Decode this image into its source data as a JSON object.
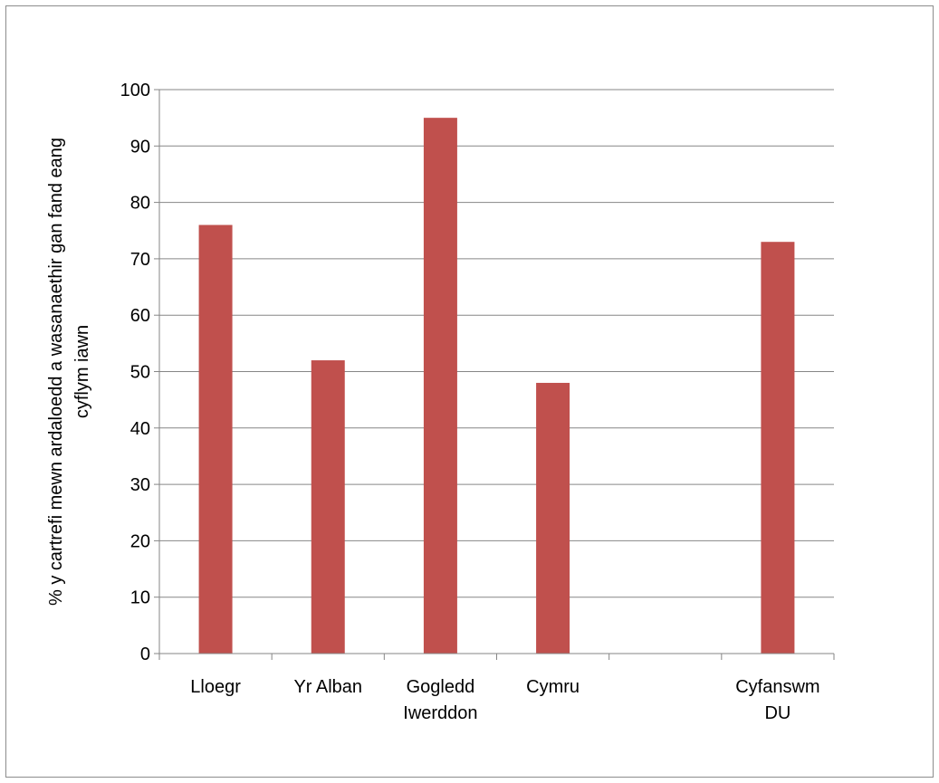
{
  "chart_data": {
    "type": "bar",
    "title": "",
    "xlabel": "",
    "ylabel_lines": [
      "% y cartrefi mewn ardaloedd a wasanaethir gan fand eang",
      "cyflym iawn"
    ],
    "categories": [
      [
        "Lloegr"
      ],
      [
        "Yr Alban"
      ],
      [
        "Gogledd",
        "Iwerddon"
      ],
      [
        "Cymru"
      ],
      [
        ""
      ],
      [
        "Cyfanswm",
        "DU"
      ]
    ],
    "values": [
      76,
      52,
      95,
      48,
      null,
      73
    ],
    "ylim": [
      0,
      100
    ],
    "yticks": [
      0,
      10,
      20,
      30,
      40,
      50,
      60,
      70,
      80,
      90,
      100
    ],
    "grid": true,
    "legend": "none",
    "colors": {
      "bar": "#c0504d",
      "grid": "#868686",
      "axis": "#868686"
    }
  }
}
